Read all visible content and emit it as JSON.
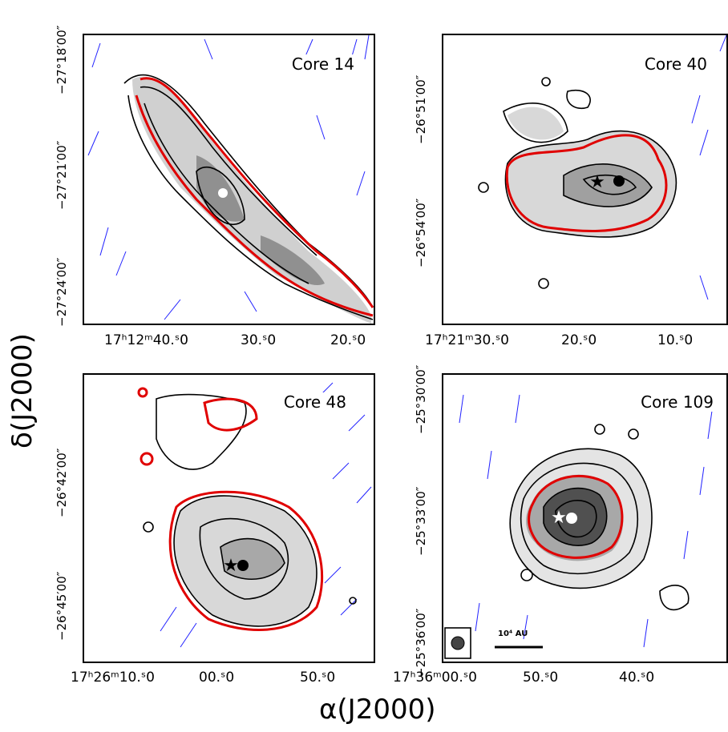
{
  "axes": {
    "xlabel": "α(J2000)",
    "ylabel": "δ(J2000)"
  },
  "chart_data": [
    {
      "type": "contour",
      "title": "Core 14",
      "yticks": [
        "−27°18′00″",
        "−27°21′00″",
        "−27°24′00″"
      ],
      "xticks": [
        "17ʰ12ᵐ40.ˢ0",
        "30.ˢ0",
        "20.ˢ0"
      ],
      "markers": [
        "white dot"
      ]
    },
    {
      "type": "contour",
      "title": "Core 40",
      "yticks": [
        "−26°51′00″",
        "−26°54′00″"
      ],
      "xticks": [
        "17ʰ21ᵐ30.ˢ0",
        "20.ˢ0",
        "10.ˢ0"
      ],
      "markers": [
        "star",
        "black dot"
      ]
    },
    {
      "type": "contour",
      "title": "Core 48",
      "yticks": [
        "−26°42′00″",
        "−26°45′00″"
      ],
      "xticks": [
        "17ʰ26ᵐ10.ˢ0",
        "00.ˢ0",
        "50.ˢ0"
      ],
      "markers": [
        "star",
        "black dot"
      ]
    },
    {
      "type": "contour",
      "title": "Core 109",
      "yticks": [
        "−25°30′00″",
        "−25°33′00″",
        "−25°36′00″"
      ],
      "xticks": [
        "17ʰ36ᵐ00.ˢ0",
        "50.ˢ0",
        "40.ˢ0"
      ],
      "markers": [
        "white star",
        "white dot"
      ],
      "scale_bar": "10⁴ AU"
    }
  ],
  "colors": {
    "contour": "#000000",
    "highlight_contour": "#e00000",
    "vectors": "#1a1aff"
  }
}
